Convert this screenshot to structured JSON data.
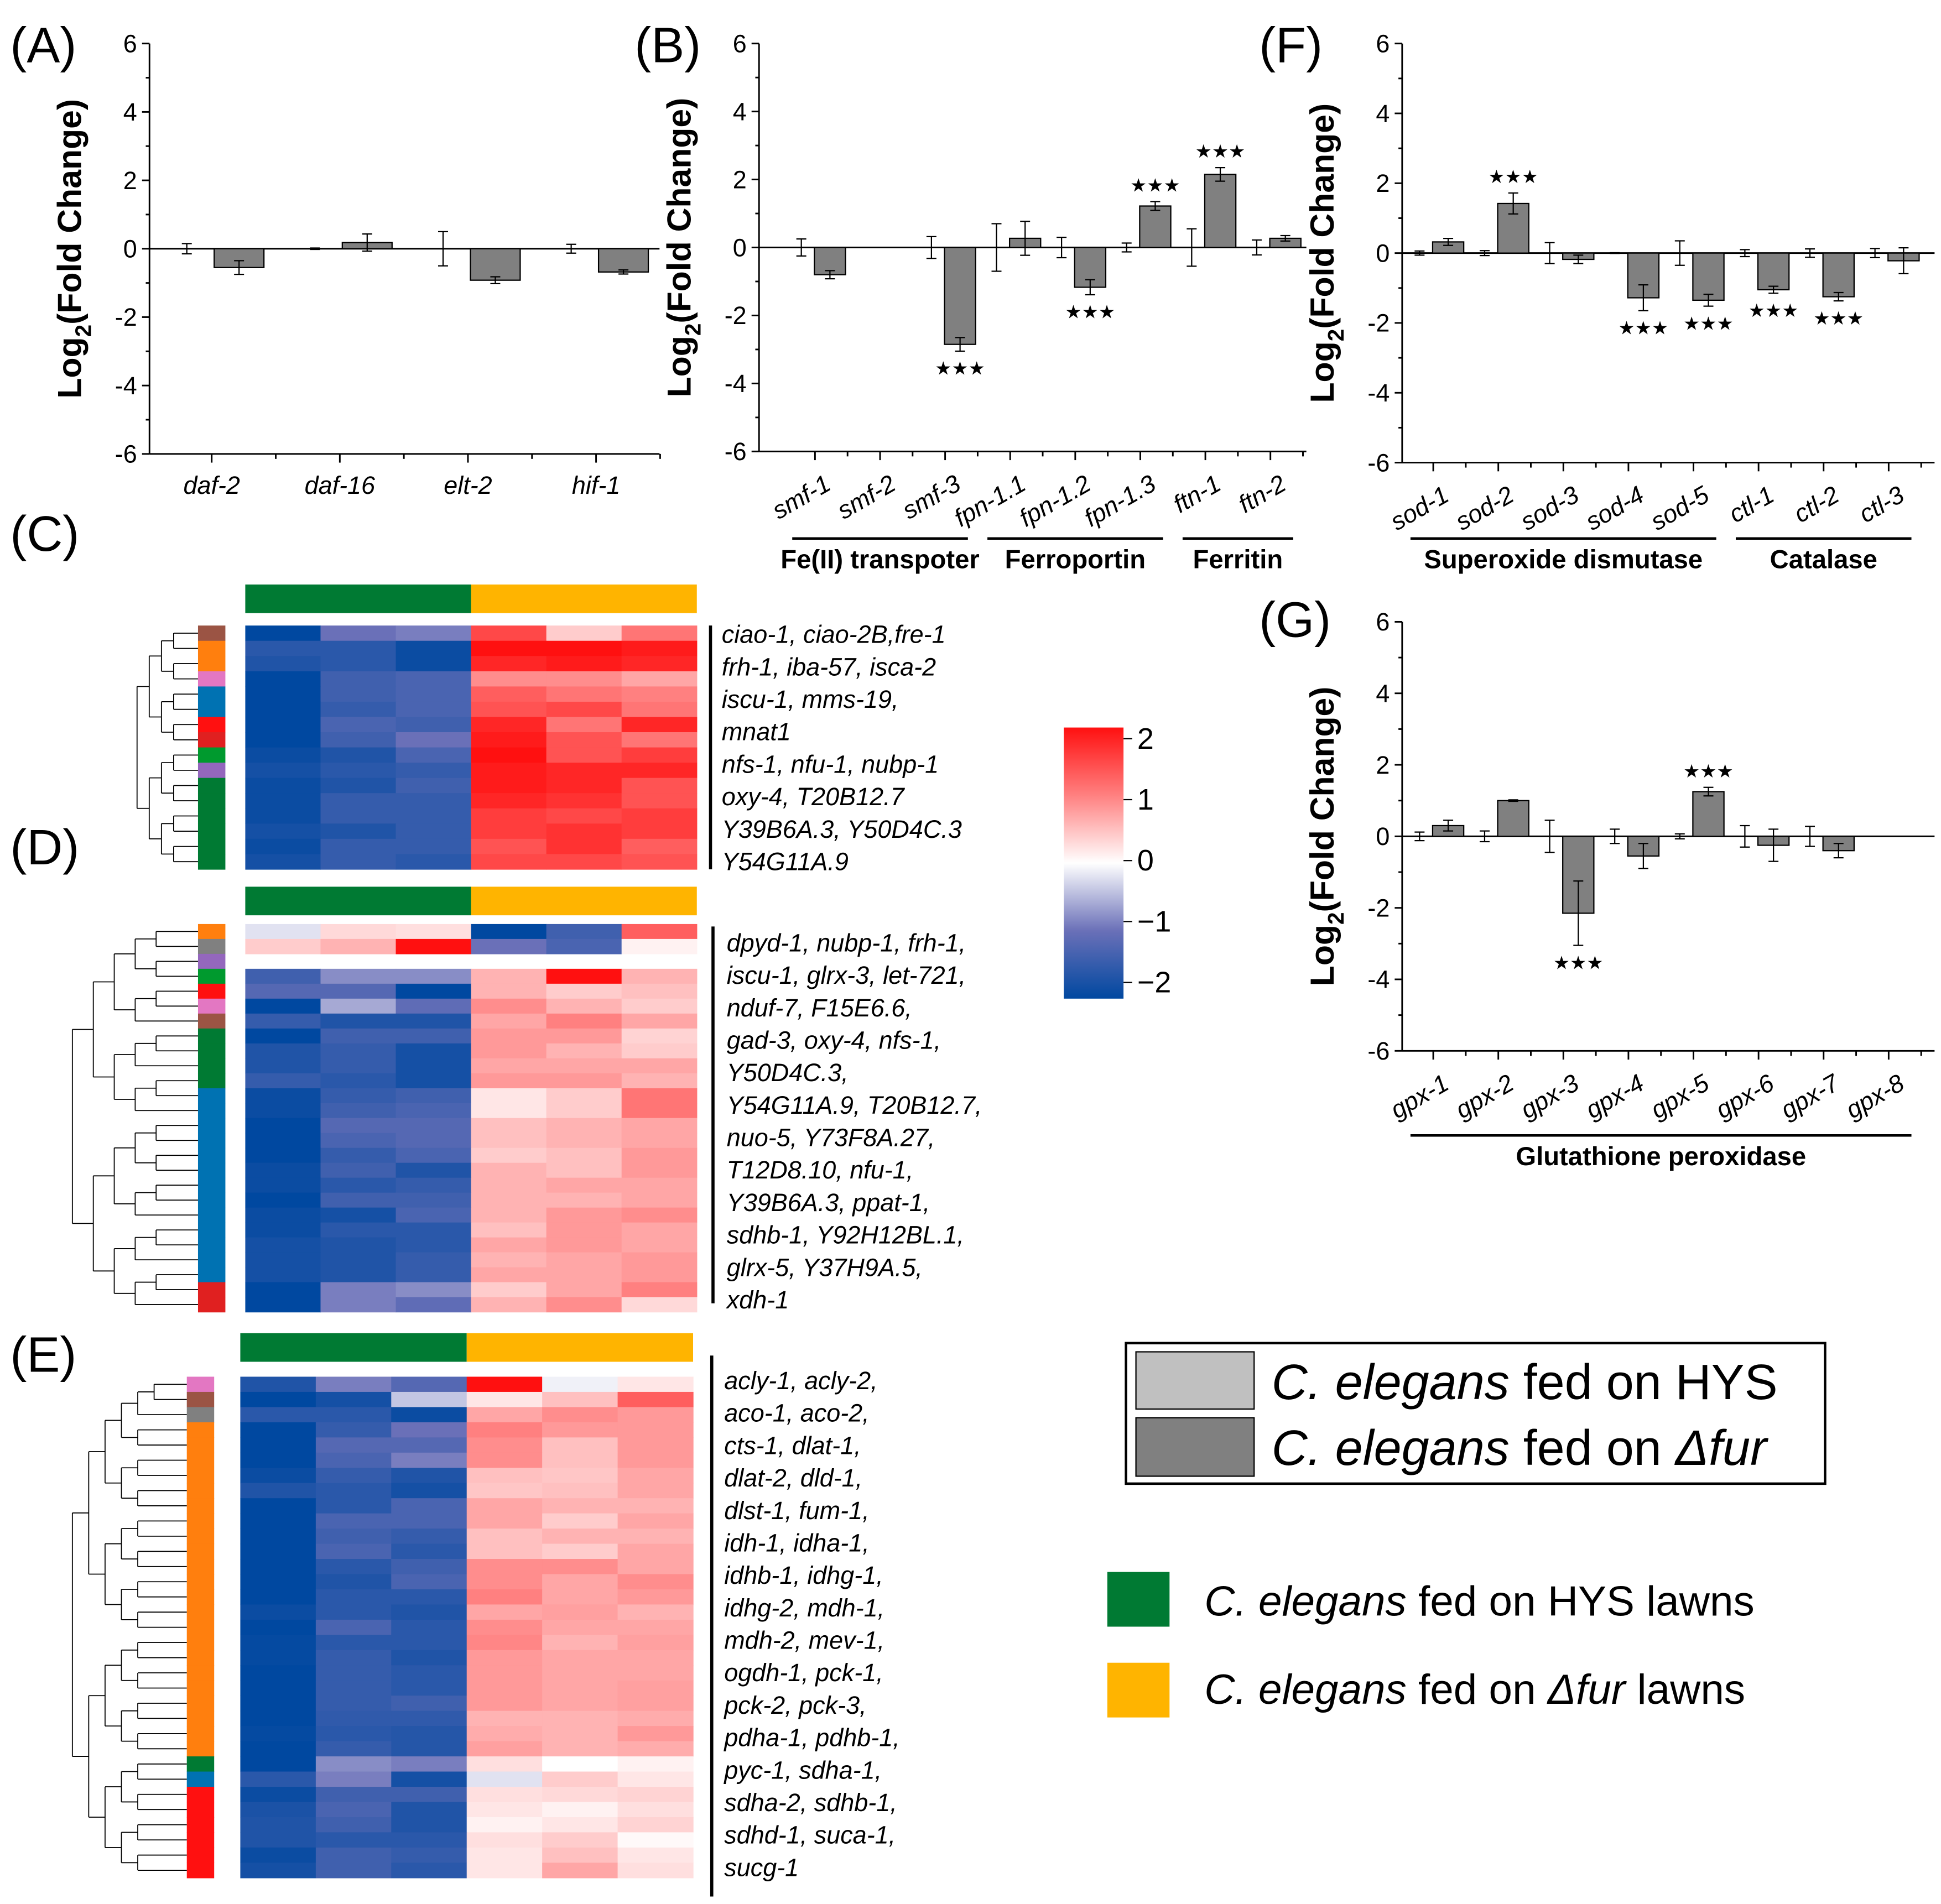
{
  "colors": {
    "bar_fur": "#808080",
    "bar_hys": "#c0c0c0",
    "group_hys": "#007a33",
    "group_fur": "#ffb400",
    "cmap_neg": "#0048a0",
    "cmap_mid_neg": "#6a70b8",
    "cmap_zero": "#ffffff",
    "cmap_mid_pos": "#ff8080",
    "cmap_pos": "#ff1010"
  },
  "panel_labels": {
    "A": "(A)",
    "B": "(B)",
    "C": "(C)",
    "D": "(D)",
    "E": "(E)",
    "F": "(F)",
    "G": "(G)"
  },
  "chart_data": [
    {
      "id": "A",
      "type": "bar",
      "ylabel_main": "Log",
      "ylabel_sub": "2",
      "ylabel_rest": "(Fold Change)",
      "ylim": [
        -6,
        6
      ],
      "yticks": [
        "-6",
        "-4",
        "-2",
        "0",
        "2",
        "4",
        "6"
      ],
      "categories": [
        "daf-2",
        "daf-16",
        "elt-2",
        "hif-1"
      ],
      "series": [
        {
          "name": "C. elegans fed on HYS",
          "values": [
            0,
            0,
            0,
            0
          ],
          "errors": [
            0.15,
            0.02,
            0.5,
            0.13
          ]
        },
        {
          "name": "C. elegans fed on Δfur",
          "values": [
            -0.55,
            0.18,
            -0.92,
            -0.68
          ],
          "errors": [
            0.2,
            0.25,
            0.1,
            0.06
          ]
        }
      ],
      "significance": [
        "",
        "",
        "",
        ""
      ],
      "groups": []
    },
    {
      "id": "B",
      "type": "bar",
      "ylabel_main": "Log",
      "ylabel_sub": "2",
      "ylabel_rest": "(Fold Change)",
      "ylim": [
        -6,
        6
      ],
      "yticks": [
        "-6",
        "-4",
        "-2",
        "0",
        "2",
        "4",
        "6"
      ],
      "categories": [
        "smf-1",
        "smf-2",
        "smf-3",
        "fpn-1.1",
        "fpn-1.2",
        "fpn-1.3",
        "ftn-1",
        "ftn-2"
      ],
      "series": [
        {
          "name": "C. elegans fed on HYS",
          "values": [
            0,
            null,
            0,
            0,
            0,
            0,
            0,
            0
          ],
          "errors": [
            0.25,
            null,
            0.32,
            0.7,
            0.3,
            0.13,
            0.55,
            0.22
          ]
        },
        {
          "name": "C. elegans fed on Δfur",
          "values": [
            -0.8,
            null,
            -2.85,
            0.27,
            -1.17,
            1.22,
            2.15,
            0.27
          ],
          "errors": [
            0.12,
            null,
            0.2,
            0.5,
            0.22,
            0.13,
            0.2,
            0.08
          ]
        }
      ],
      "significance": [
        "",
        "",
        "***",
        "",
        "***",
        "***",
        "***",
        ""
      ],
      "groups": [
        {
          "label": "Fe(II) transpoter",
          "from": 0,
          "to": 2
        },
        {
          "label": "Ferroportin",
          "from": 3,
          "to": 5
        },
        {
          "label": "Ferritin",
          "from": 6,
          "to": 7
        }
      ]
    },
    {
      "id": "F",
      "type": "bar",
      "ylabel_main": "Log",
      "ylabel_sub": "2",
      "ylabel_rest": "(Fold Change)",
      "ylim": [
        -6,
        6
      ],
      "yticks": [
        "-6",
        "-4",
        "-2",
        "0",
        "2",
        "4",
        "6"
      ],
      "categories": [
        "sod-1",
        "sod-2",
        "sod-3",
        "sod-4",
        "sod-5",
        "ctl-1",
        "ctl-2",
        "ctl-3"
      ],
      "series": [
        {
          "name": "C. elegans fed on HYS",
          "values": [
            0,
            0,
            0,
            0,
            0,
            0,
            0,
            0
          ],
          "errors": [
            0.06,
            0.07,
            0.3,
            0.01,
            0.35,
            0.1,
            0.12,
            0.13
          ]
        },
        {
          "name": "C. elegans fed on Δfur",
          "values": [
            0.32,
            1.42,
            -0.18,
            -1.28,
            -1.35,
            -1.05,
            -1.25,
            -0.22
          ],
          "errors": [
            0.1,
            0.3,
            0.12,
            0.37,
            0.17,
            0.1,
            0.12,
            0.37
          ]
        }
      ],
      "significance": [
        "",
        "***",
        "",
        "***",
        "***",
        "***",
        "***",
        ""
      ],
      "groups": [
        {
          "label": "Superoxide dismutase",
          "from": 0,
          "to": 4
        },
        {
          "label": "Catalase",
          "from": 5,
          "to": 7
        }
      ]
    },
    {
      "id": "G",
      "type": "bar",
      "ylabel_main": "Log",
      "ylabel_sub": "2",
      "ylabel_rest": "(Fold Change)",
      "ylim": [
        -6,
        6
      ],
      "yticks": [
        "-6",
        "-4",
        "-2",
        "0",
        "2",
        "4",
        "6"
      ],
      "categories": [
        "gpx-1",
        "gpx-2",
        "gpx-3",
        "gpx-4",
        "gpx-5",
        "gpx-6",
        "gpx-7",
        "gpx-8"
      ],
      "series": [
        {
          "name": "C. elegans fed on HYS",
          "values": [
            0,
            0,
            0,
            0,
            0,
            0,
            0,
            null
          ],
          "errors": [
            0.12,
            0.15,
            0.45,
            0.2,
            0.07,
            0.3,
            0.28,
            null
          ]
        },
        {
          "name": "C. elegans fed on Δfur",
          "values": [
            0.3,
            1.0,
            -2.15,
            -0.55,
            1.25,
            -0.25,
            -0.4,
            null
          ],
          "errors": [
            0.15,
            0.02,
            0.9,
            0.35,
            0.12,
            0.45,
            0.2,
            null
          ]
        }
      ],
      "significance": [
        "",
        "",
        "***",
        "",
        "***",
        "",
        "",
        ""
      ],
      "groups": [
        {
          "label": "Glutathione peroxidase",
          "from": 0,
          "to": 7
        }
      ]
    },
    {
      "id": "C",
      "type": "heatmap",
      "vmin": -2,
      "vmax": 2,
      "columns_group": [
        "HYS",
        "HYS",
        "HYS",
        "Δfur",
        "Δfur",
        "Δfur"
      ],
      "row_clusters": [
        "#9b5444",
        "#ff7f0e",
        "#ff7f0e",
        "#e377c2",
        "#0072b2",
        "#0072b2",
        "#ff1010",
        "#e02020",
        "#009a2e",
        "#9467bd",
        "#007a33",
        "#007a33",
        "#007a33",
        "#007a33",
        "#007a33",
        "#007a33"
      ],
      "values": [
        [
          -2,
          -1,
          -0.9,
          1.5,
          0.4,
          1.1
        ],
        [
          -1.6,
          -1.6,
          -1.9,
          2,
          2,
          1.9
        ],
        [
          -1.7,
          -1.6,
          -1.9,
          1.8,
          1.9,
          1.8
        ],
        [
          -2,
          -1.4,
          -1.3,
          0.9,
          0.9,
          0.7
        ],
        [
          -2,
          -1.4,
          -1.3,
          1.3,
          1.1,
          1
        ],
        [
          -2,
          -1.5,
          -1.3,
          1.4,
          1.5,
          1.1
        ],
        [
          -2,
          -1.3,
          -1.4,
          1.8,
          1.1,
          1.8
        ],
        [
          -2,
          -1.4,
          -1,
          1.9,
          1.4,
          1.1
        ],
        [
          -1.9,
          -1.7,
          -1.3,
          2,
          1.4,
          1.6
        ],
        [
          -1.8,
          -1.6,
          -1.5,
          1.9,
          1.8,
          1.8
        ],
        [
          -1.9,
          -1.7,
          -1.4,
          1.9,
          1.8,
          1.4
        ],
        [
          -1.9,
          -1.5,
          -1.5,
          1.8,
          1.7,
          1.4
        ],
        [
          -1.9,
          -1.5,
          -1.5,
          1.6,
          1.5,
          1.6
        ],
        [
          -1.8,
          -1.7,
          -1.5,
          1.6,
          1.7,
          1.6
        ],
        [
          -1.9,
          -1.5,
          -1.5,
          1.4,
          1.7,
          1.3
        ],
        [
          -1.8,
          -1.5,
          -1.6,
          1.5,
          1.5,
          1.4
        ]
      ],
      "gene_labels": [
        "ciao-1, ciao-2B,fre-1",
        "frh-1, iba-57, isca-2",
        "iscu-1, mms-19,",
        "mnat1",
        "nfs-1, nfu-1, nubp-1",
        "oxy-4, T20B12.7",
        "Y39B6A.3, Y50D4C.3",
        "Y54G11A.9"
      ]
    },
    {
      "id": "D",
      "type": "heatmap",
      "vmin": -2,
      "vmax": 2,
      "columns_group": [
        "HYS",
        "HYS",
        "HYS",
        "Δfur",
        "Δfur",
        "Δfur"
      ],
      "row_clusters": [
        "#ff7f0e",
        "#808080",
        "#9467bd",
        "#009a2e",
        "#ff1010",
        "#e377c2",
        "#9b5444",
        "#007a33",
        "#007a33",
        "#007a33",
        "#007a33",
        "#0072b2",
        "#0072b2",
        "#0072b2",
        "#0072b2",
        "#0072b2",
        "#0072b2",
        "#0072b2",
        "#0072b2",
        "#0072b2",
        "#0072b2",
        "#0072b2",
        "#0072b2",
        "#0072b2",
        "#e02020",
        "#e02020"
      ],
      "values": [
        [
          -0.2,
          0.3,
          0.25,
          -2,
          -1.4,
          1.3
        ],
        [
          0.4,
          0.6,
          2,
          -1,
          -1.3,
          0.1
        ],
        null,
        [
          -1.4,
          -0.8,
          -0.8,
          0.6,
          2,
          0.6
        ],
        [
          -1.2,
          -1.2,
          -2,
          0.6,
          0.4,
          0.5
        ],
        [
          -2,
          -0.6,
          -1.1,
          0.9,
          0.6,
          0.4
        ],
        [
          -1.5,
          -1.7,
          -1.7,
          0.7,
          1,
          0.7
        ],
        [
          -2,
          -1.4,
          -1.4,
          0.8,
          0.8,
          0.35
        ],
        [
          -1.7,
          -1.5,
          -1.8,
          0.8,
          0.6,
          0.4
        ],
        [
          -1.7,
          -1.5,
          -1.8,
          0.7,
          0.7,
          0.7
        ],
        [
          -1.5,
          -1.6,
          -1.8,
          0.8,
          0.8,
          0.6
        ],
        [
          -1.9,
          -1.5,
          -1.4,
          0.2,
          0.4,
          1.1
        ],
        [
          -1.9,
          -1.4,
          -1.3,
          0.2,
          0.4,
          1.1
        ],
        [
          -2,
          -1.2,
          -1.2,
          0.5,
          0.6,
          0.7
        ],
        [
          -2,
          -1.3,
          -1.2,
          0.5,
          0.6,
          0.7
        ],
        [
          -2,
          -1.5,
          -1.3,
          0.4,
          0.5,
          0.8
        ],
        [
          -1.9,
          -1.4,
          -1.7,
          0.6,
          0.5,
          0.8
        ],
        [
          -1.9,
          -1.6,
          -1.5,
          0.6,
          0.7,
          0.7
        ],
        [
          -2,
          -1.4,
          -1.4,
          0.6,
          0.6,
          0.7
        ],
        [
          -1.9,
          -1.8,
          -1.3,
          0.6,
          0.8,
          0.9
        ],
        [
          -1.9,
          -1.6,
          -1.6,
          0.5,
          0.8,
          0.7
        ],
        [
          -1.8,
          -1.7,
          -1.6,
          0.7,
          0.8,
          0.7
        ],
        [
          -1.8,
          -1.7,
          -1.5,
          0.6,
          0.7,
          0.8
        ],
        [
          -1.8,
          -1.7,
          -1.5,
          0.7,
          0.7,
          0.8
        ],
        [
          -2,
          -0.9,
          -0.8,
          0.4,
          0.7,
          1
        ],
        [
          -2,
          -0.9,
          -1.1,
          0.6,
          0.9,
          0.3
        ]
      ],
      "gene_labels": [
        "dpyd-1, nubp-1, frh-1,",
        "iscu-1, glrx-3, let-721,",
        "nduf-7, F15E6.6,",
        "gad-3, oxy-4, nfs-1,",
        "Y50D4C.3,",
        "Y54G11A.9, T20B12.7,",
        "nuo-5, Y73F8A.27,",
        "T12D8.10, nfu-1,",
        "Y39B6A.3, ppat-1,",
        "sdhb-1, Y92H12BL.1,",
        "glrx-5, Y37H9A.5,",
        "xdh-1"
      ]
    },
    {
      "id": "E",
      "type": "heatmap",
      "vmin": -2,
      "vmax": 2,
      "columns_group": [
        "HYS",
        "HYS",
        "HYS",
        "Δfur",
        "Δfur",
        "Δfur"
      ],
      "row_clusters": [
        "#e377c2",
        "#9b5444",
        "#808080",
        "#ff7f0e",
        "#ff7f0e",
        "#ff7f0e",
        "#ff7f0e",
        "#ff7f0e",
        "#ff7f0e",
        "#ff7f0e",
        "#ff7f0e",
        "#ff7f0e",
        "#ff7f0e",
        "#ff7f0e",
        "#ff7f0e",
        "#ff7f0e",
        "#ff7f0e",
        "#ff7f0e",
        "#ff7f0e",
        "#ff7f0e",
        "#ff7f0e",
        "#ff7f0e",
        "#ff7f0e",
        "#ff7f0e",
        "#ff7f0e",
        "#007a33",
        "#0072b2",
        "#ff1010",
        "#ff1010",
        "#ff1010",
        "#ff1010",
        "#ff1010",
        "#ff1010"
      ],
      "values": [
        [
          -1.7,
          -0.9,
          -1.2,
          2,
          -0.1,
          0.2
        ],
        [
          -2,
          -1.8,
          -0.4,
          0.2,
          0.5,
          1.3
        ],
        [
          -1.6,
          -1.6,
          -1.9,
          0.7,
          0.9,
          0.8
        ],
        [
          -2,
          -1.5,
          -1,
          1,
          0.8,
          0.8
        ],
        [
          -2,
          -1.2,
          -1.2,
          0.9,
          0.5,
          0.8
        ],
        [
          -2,
          -1.3,
          -0.9,
          0.9,
          0.5,
          0.8
        ],
        [
          -1.9,
          -1.5,
          -1.7,
          0.5,
          0.45,
          0.7
        ],
        [
          -1.7,
          -1.6,
          -1.8,
          0.45,
          0.5,
          0.7
        ],
        [
          -2,
          -1.6,
          -1.3,
          0.7,
          0.6,
          0.6
        ],
        [
          -2,
          -1.3,
          -1.3,
          0.7,
          0.4,
          0.7
        ],
        [
          -2,
          -1.4,
          -1.5,
          0.5,
          0.6,
          0.6
        ],
        [
          -2,
          -1.3,
          -1.6,
          0.5,
          0.4,
          0.7
        ],
        [
          -2,
          -1.6,
          -1.4,
          0.9,
          0.9,
          0.7
        ],
        [
          -2,
          -1.7,
          -1.3,
          0.9,
          0.7,
          0.9
        ],
        [
          -2,
          -1.6,
          -1.6,
          1,
          0.7,
          0.8
        ],
        [
          -1.9,
          -1.6,
          -1.7,
          0.7,
          0.75,
          0.6
        ],
        [
          -2,
          -1.3,
          -1.6,
          0.9,
          0.7,
          0.7
        ],
        [
          -1.95,
          -1.6,
          -1.6,
          0.95,
          0.6,
          0.75
        ],
        [
          -1.95,
          -1.5,
          -1.7,
          0.8,
          0.7,
          0.7
        ],
        [
          -2,
          -1.5,
          -1.6,
          0.8,
          0.7,
          0.7
        ],
        [
          -2,
          -1.5,
          -1.6,
          0.8,
          0.7,
          0.75
        ],
        [
          -2,
          -1.5,
          -1.4,
          0.8,
          0.7,
          0.75
        ],
        [
          -2,
          -1.55,
          -1.55,
          0.6,
          0.6,
          0.65
        ],
        [
          -1.95,
          -1.6,
          -1.65,
          0.65,
          0.6,
          0.8
        ],
        [
          -2,
          -1.5,
          -1.65,
          0.75,
          0.6,
          0.65
        ],
        [
          -2,
          -0.8,
          -0.9,
          0.25,
          0,
          0.1
        ],
        [
          -1.6,
          -0.9,
          -1.8,
          -0.2,
          0.4,
          0.2
        ],
        [
          -1.9,
          -1.4,
          -1.4,
          0.25,
          0.3,
          0.35
        ],
        [
          -1.75,
          -1.3,
          -1.7,
          0.2,
          0.1,
          0.25
        ],
        [
          -1.7,
          -1.4,
          -1.7,
          0.1,
          0.2,
          0.35
        ],
        [
          -1.7,
          -1.6,
          -1.6,
          0.25,
          0.4,
          0.05
        ],
        [
          -1.9,
          -1.4,
          -1.5,
          0.2,
          0.5,
          0.2
        ],
        [
          -1.8,
          -1.4,
          -1.6,
          0.2,
          0.7,
          0.25
        ]
      ],
      "gene_labels": [
        "acly-1, acly-2,",
        "aco-1, aco-2,",
        "cts-1, dlat-1,",
        "dlat-2, dld-1,",
        "dlst-1, fum-1,",
        "idh-1, idha-1,",
        "idhb-1, idhg-1,",
        "idhg-2, mdh-1,",
        "mdh-2, mev-1,",
        "ogdh-1, pck-1,",
        "pck-2, pck-3,",
        "pdha-1, pdhb-1,",
        "pyc-1, sdha-1,",
        "sdha-2, sdhb-1,",
        "sdhd-1, suca-1,",
        "sucg-1"
      ]
    }
  ],
  "colorbar": {
    "ticks": [
      "2",
      "1",
      "0",
      "−1",
      "−2"
    ]
  },
  "legend_bars": {
    "hys": {
      "species": "C. elegans",
      "rest": " fed on HYS"
    },
    "fur": {
      "species": "C. elegans",
      "mid": " fed on ",
      "strain": "Δfur"
    }
  },
  "legend_groups": {
    "hys": {
      "species": "C. elegans",
      "rest": " fed on HYS lawns"
    },
    "fur": {
      "species": "C. elegans",
      "mid": " fed on ",
      "strain": "Δfur",
      "rest": " lawns"
    }
  }
}
